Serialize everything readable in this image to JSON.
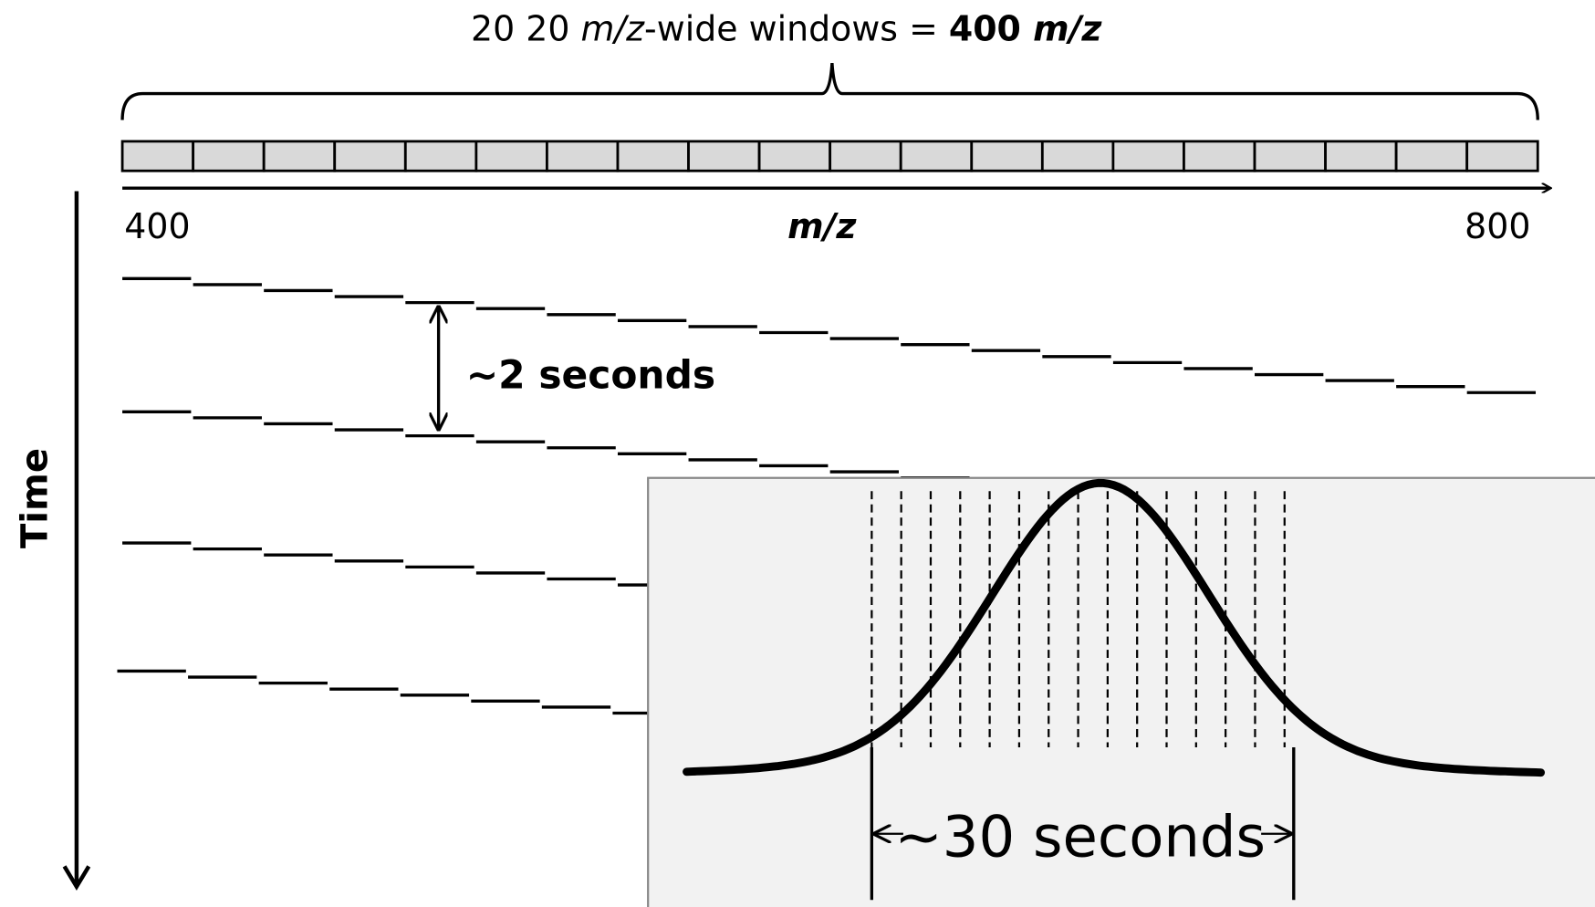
{
  "title": {
    "count": "20  20 ",
    "unit": "m/z",
    "middle": "-wide windows = ",
    "total": "400 ",
    "total_unit": "m/z"
  },
  "axis": {
    "start": "400",
    "label": "m/z",
    "end": "800"
  },
  "cycle_label": "~2 seconds",
  "time_label": "Time",
  "peak_label": "~30 seconds"
}
